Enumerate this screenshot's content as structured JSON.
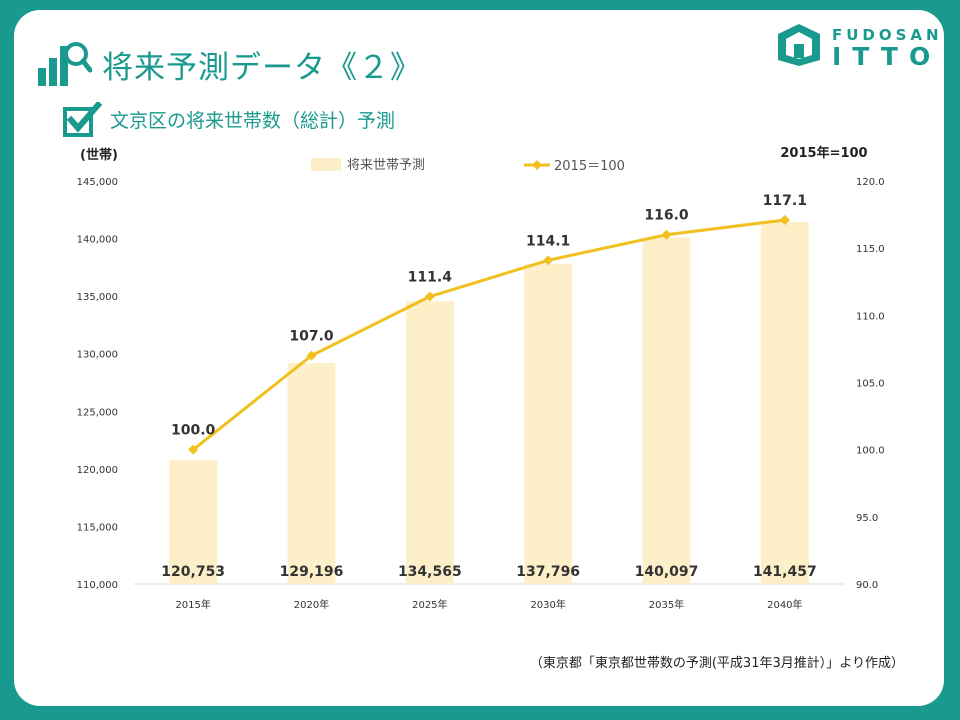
{
  "page": {
    "title": "将来予測データ《２》",
    "subtitle": "文京区の将来世帯数（総計）予測",
    "source": "（東京都「東京都世帯数の予測(平成31年3月推計）」より作成）"
  },
  "logo": {
    "top": "FUDOSAN",
    "bottom": "ITTO"
  },
  "colors": {
    "accent": "#1a9a8e",
    "bar": "#fdf0c8",
    "line": "#f2c01e",
    "card": "#ffffff"
  },
  "chart_data": {
    "type": "bar",
    "categories": [
      "2015年",
      "2020年",
      "2025年",
      "2030年",
      "2035年",
      "2040年"
    ],
    "series": [
      {
        "name": "将来世帯予測",
        "type": "bar",
        "axis": "left",
        "values": [
          120753,
          129196,
          134565,
          137796,
          140097,
          141457
        ],
        "labels": [
          "120,753",
          "129,196",
          "134,565",
          "137,796",
          "140,097",
          "141,457"
        ]
      },
      {
        "name": "2015＝100",
        "type": "line",
        "axis": "right",
        "values": [
          100.0,
          107.0,
          111.4,
          114.1,
          116.0,
          117.1
        ],
        "labels": [
          "100.0",
          "107.0",
          "111.4",
          "114.1",
          "116.0",
          "117.1"
        ]
      }
    ],
    "y_left": {
      "label": "(世帯)",
      "range": [
        110000,
        145000
      ],
      "ticks": [
        "110,000",
        "115,000",
        "120,000",
        "125,000",
        "130,000",
        "135,000",
        "140,000",
        "145,000"
      ]
    },
    "y_right": {
      "label": "2015年=100",
      "range": [
        90,
        120
      ],
      "ticks": [
        "90.0",
        "95.0",
        "100.0",
        "105.0",
        "110.0",
        "115.0",
        "120.0"
      ]
    },
    "grid": false,
    "legend": "top-center"
  }
}
